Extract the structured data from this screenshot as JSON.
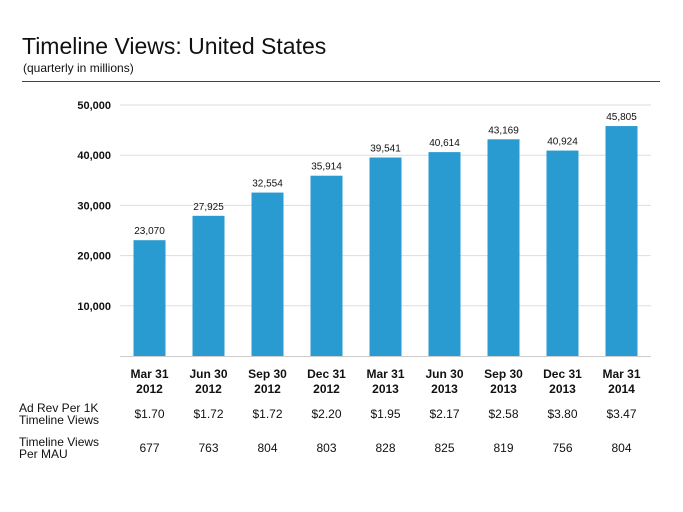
{
  "header": {
    "title": "Timeline Views: United States",
    "subtitle": "(quarterly in millions)"
  },
  "chart_data": {
    "type": "bar",
    "title": "Timeline Views: United States",
    "subtitle": "(quarterly in millions)",
    "categories": [
      [
        "Mar 31",
        "2012"
      ],
      [
        "Jun 30",
        "2012"
      ],
      [
        "Sep 30",
        "2012"
      ],
      [
        "Dec 31",
        "2012"
      ],
      [
        "Mar 31",
        "2013"
      ],
      [
        "Jun 30",
        "2013"
      ],
      [
        "Sep 30",
        "2013"
      ],
      [
        "Dec 31",
        "2013"
      ],
      [
        "Mar 31",
        "2014"
      ]
    ],
    "values": [
      23070,
      27925,
      32554,
      35914,
      39541,
      40614,
      43169,
      40924,
      45805
    ],
    "data_labels": [
      "23,070",
      "27,925",
      "32,554",
      "35,914",
      "39,541",
      "40,614",
      "43,169",
      "40,924",
      "45,805"
    ],
    "y_ticks": [
      {
        "value": 10000,
        "label": "10,000"
      },
      {
        "value": 20000,
        "label": "20,000"
      },
      {
        "value": 30000,
        "label": "30,000"
      },
      {
        "value": 40000,
        "label": "40,000"
      },
      {
        "value": 50000,
        "label": "50,000"
      }
    ],
    "ylim": [
      0,
      50000
    ],
    "xlabel": "",
    "ylabel": "",
    "grid": true,
    "bar_color": "#2a9bd0",
    "grid_color": "#dddddd"
  },
  "table": {
    "rows": [
      {
        "label_lines": [
          "Ad Rev Per 1K",
          "Timeline Views"
        ],
        "values": [
          "$1.70",
          "$1.72",
          "$1.72",
          "$2.20",
          "$1.95",
          "$2.17",
          "$2.58",
          "$3.80",
          "$3.47"
        ]
      },
      {
        "label_lines": [
          "Timeline Views",
          "Per MAU"
        ],
        "values": [
          "677",
          "763",
          "804",
          "803",
          "828",
          "825",
          "819",
          "756",
          "804"
        ]
      }
    ]
  }
}
